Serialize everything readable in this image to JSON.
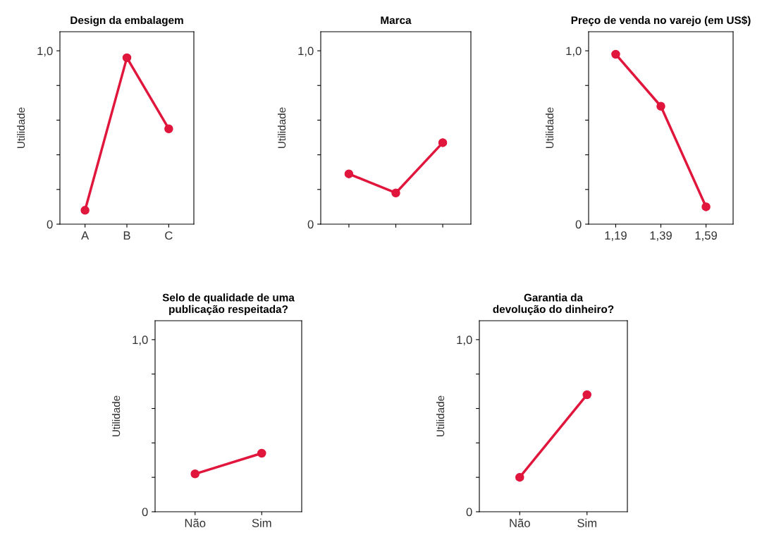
{
  "chart_data": [
    {
      "type": "line",
      "title": "Design da embalagem",
      "ylabel": "Utilidade",
      "categories": [
        "A",
        "B",
        "C"
      ],
      "series": [
        {
          "color": "#e0163c",
          "values": [
            0.08,
            0.96,
            0.55
          ]
        }
      ],
      "ylim": [
        0,
        1.11
      ],
      "yticks": [
        {
          "value": 0,
          "label": "0"
        },
        {
          "value": 0.2,
          "label": null
        },
        {
          "value": 0.4,
          "label": null
        },
        {
          "value": 0.6,
          "label": null
        },
        {
          "value": 0.8,
          "label": null
        },
        {
          "value": 1.0,
          "label": "1,0"
        }
      ],
      "marker": "circle",
      "grid": false,
      "legend": false
    },
    {
      "type": "line",
      "title": "Marca",
      "ylabel": "Utilidade",
      "categories": [
        null,
        null,
        null
      ],
      "series": [
        {
          "color": "#e0163c",
          "values": [
            0.29,
            0.18,
            0.47
          ]
        }
      ],
      "ylim": [
        0,
        1.11
      ],
      "yticks": [
        {
          "value": 0,
          "label": "0"
        },
        {
          "value": 0.2,
          "label": null
        },
        {
          "value": 0.4,
          "label": null
        },
        {
          "value": 0.6,
          "label": null
        },
        {
          "value": 0.8,
          "label": null
        },
        {
          "value": 1.0,
          "label": "1,0"
        }
      ],
      "marker": "circle",
      "grid": false,
      "legend": false
    },
    {
      "type": "line",
      "title": "Preço de venda no varejo (em US$)",
      "ylabel": "Utilidade",
      "categories": [
        "1,19",
        "1,39",
        "1,59"
      ],
      "series": [
        {
          "color": "#e0163c",
          "values": [
            0.98,
            0.68,
            0.1
          ]
        }
      ],
      "ylim": [
        0,
        1.11
      ],
      "yticks": [
        {
          "value": 0,
          "label": "0"
        },
        {
          "value": 0.2,
          "label": null
        },
        {
          "value": 0.4,
          "label": null
        },
        {
          "value": 0.6,
          "label": null
        },
        {
          "value": 0.8,
          "label": null
        },
        {
          "value": 1.0,
          "label": "1,0"
        }
      ],
      "marker": "circle",
      "grid": false,
      "legend": false
    },
    {
      "type": "line",
      "title": "Selo de qualidade de uma\npublicação respeitada?",
      "ylabel": "Utilidade",
      "categories": [
        "Não",
        "Sim"
      ],
      "series": [
        {
          "color": "#e0163c",
          "values": [
            0.22,
            0.34
          ]
        }
      ],
      "ylim": [
        0,
        1.11
      ],
      "yticks": [
        {
          "value": 0,
          "label": "0"
        },
        {
          "value": 0.2,
          "label": null
        },
        {
          "value": 0.4,
          "label": null
        },
        {
          "value": 0.6,
          "label": null
        },
        {
          "value": 0.8,
          "label": null
        },
        {
          "value": 1.0,
          "label": "1,0"
        }
      ],
      "marker": "circle",
      "grid": false,
      "legend": false
    },
    {
      "type": "line",
      "title": "Garantia da\ndevolução do dinheiro?",
      "ylabel": "Utilidade",
      "categories": [
        "Não",
        "Sim"
      ],
      "series": [
        {
          "color": "#e0163c",
          "values": [
            0.2,
            0.68
          ]
        }
      ],
      "ylim": [
        0,
        1.11
      ],
      "yticks": [
        {
          "value": 0,
          "label": "0"
        },
        {
          "value": 0.2,
          "label": null
        },
        {
          "value": 0.4,
          "label": null
        },
        {
          "value": 0.6,
          "label": null
        },
        {
          "value": 0.8,
          "label": null
        },
        {
          "value": 1.0,
          "label": "1,0"
        }
      ],
      "marker": "circle",
      "grid": false,
      "legend": false
    }
  ]
}
